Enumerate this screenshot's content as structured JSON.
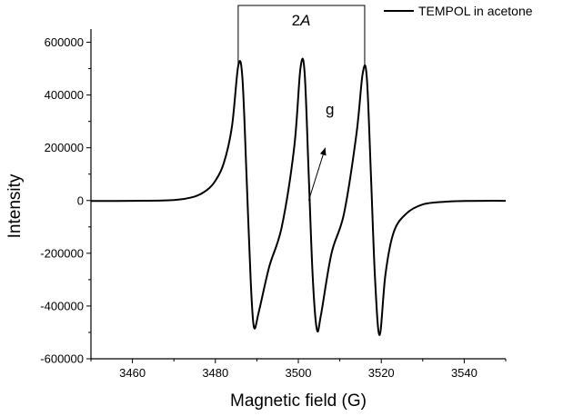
{
  "chart_data": {
    "type": "line",
    "title": "",
    "xlabel": "Magnetic field (G)",
    "ylabel": "Intensity",
    "xlim": [
      3450,
      3550
    ],
    "ylim": [
      -600000,
      650000
    ],
    "xticks": [
      3460,
      3480,
      3500,
      3520,
      3540
    ],
    "yticks": [
      -600000,
      -400000,
      -200000,
      0,
      200000,
      400000,
      600000
    ],
    "grid": false,
    "legend_position": "top-right",
    "series": [
      {
        "name": "TEMPOL in acetone",
        "color": "#000000",
        "x": [
          3450,
          3460,
          3470,
          3475,
          3478,
          3480,
          3482,
          3484,
          3485.5,
          3486.5,
          3487.5,
          3488.5,
          3489.3,
          3490.5,
          3493,
          3496,
          3499,
          3500.5,
          3501.5,
          3502.5,
          3503.5,
          3504.5,
          3505.5,
          3508,
          3511,
          3514,
          3515.5,
          3516.5,
          3517.5,
          3518.5,
          3519.6,
          3521,
          3523,
          3526,
          3530,
          3535,
          3540,
          3545,
          3550
        ],
        "y": [
          -2000,
          -1000,
          2000,
          15000,
          40000,
          75000,
          140000,
          280000,
          510000,
          470000,
          100000,
          -300000,
          -480000,
          -420000,
          -250000,
          -100000,
          200000,
          500000,
          490000,
          100000,
          -300000,
          -490000,
          -430000,
          -200000,
          -50000,
          250000,
          480000,
          470000,
          100000,
          -300000,
          -510000,
          -280000,
          -120000,
          -50000,
          -15000,
          -5000,
          -2000,
          -1000,
          -1000
        ]
      }
    ],
    "annotations": {
      "bracket_label_prefix": "2",
      "bracket_label_italic": "A",
      "bracket_x": [
        3485.5,
        3516
      ],
      "g_label": "g",
      "g_arrow_x": [
        3502.5,
        3506.5
      ],
      "g_arrow_y": [
        0,
        200000
      ]
    }
  }
}
